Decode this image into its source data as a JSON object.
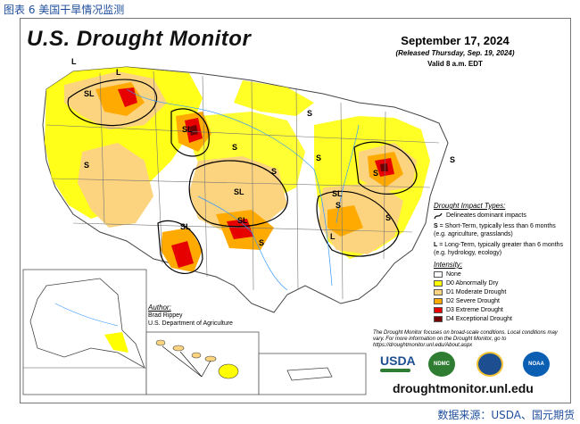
{
  "caption": "图表 6 美国干旱情况监测",
  "source": "数据来源：USDA、国元期货",
  "header": {
    "title": "U.S. Drought Monitor",
    "date": "September 17, 2024",
    "released": "(Released Thursday, Sep. 19, 2024)",
    "valid": "Valid 8 a.m. EDT"
  },
  "impact_types": {
    "heading": "Drought Impact Types:",
    "delineates": "Delineates dominant impacts",
    "short_term_key": "S",
    "short_term": "= Short-Term, typically less than 6 months (e.g. agriculture, grasslands)",
    "long_term_key": "L",
    "long_term": "= Long-Term, typically greater than 6 months (e.g. hydrology, ecology)"
  },
  "intensity": {
    "heading": "Intensity:",
    "levels": [
      {
        "label": "None",
        "color": "#ffffff"
      },
      {
        "label": "D0 Abnormally Dry",
        "color": "#ffff00"
      },
      {
        "label": "D1 Moderate Drought",
        "color": "#fcd37f"
      },
      {
        "label": "D2 Severe Drought",
        "color": "#ffaa00"
      },
      {
        "label": "D3 Extreme Drought",
        "color": "#e60000"
      },
      {
        "label": "D4 Exceptional Drought",
        "color": "#730000"
      }
    ]
  },
  "author": {
    "heading": "Author:",
    "name": "Brad Rippey",
    "org": "U.S. Department of Agriculture"
  },
  "note": "The Drought Monitor focuses on broad-scale conditions. Local conditions may vary. For more information on the Drought Monitor, go to https://droughtmonitor.unl.edu/About.aspx",
  "logos": {
    "usda": "USDA",
    "ndmc": "NDMC",
    "noaa": "NOAA"
  },
  "website": "droughtmonitor.unl.edu",
  "map_labels": [
    "L",
    "L",
    "SL",
    "SL",
    "S",
    "S",
    "S",
    "S",
    "S",
    "S",
    "SL",
    "SL",
    "SL",
    "S",
    "SL",
    "L",
    "S",
    "S",
    "S",
    "SL",
    "S"
  ],
  "colors": {
    "d0": "#ffff00",
    "d1": "#fcd37f",
    "d2": "#ffaa00",
    "d3": "#e60000",
    "d4": "#730000",
    "caption_blue": "#1f4e9c"
  }
}
